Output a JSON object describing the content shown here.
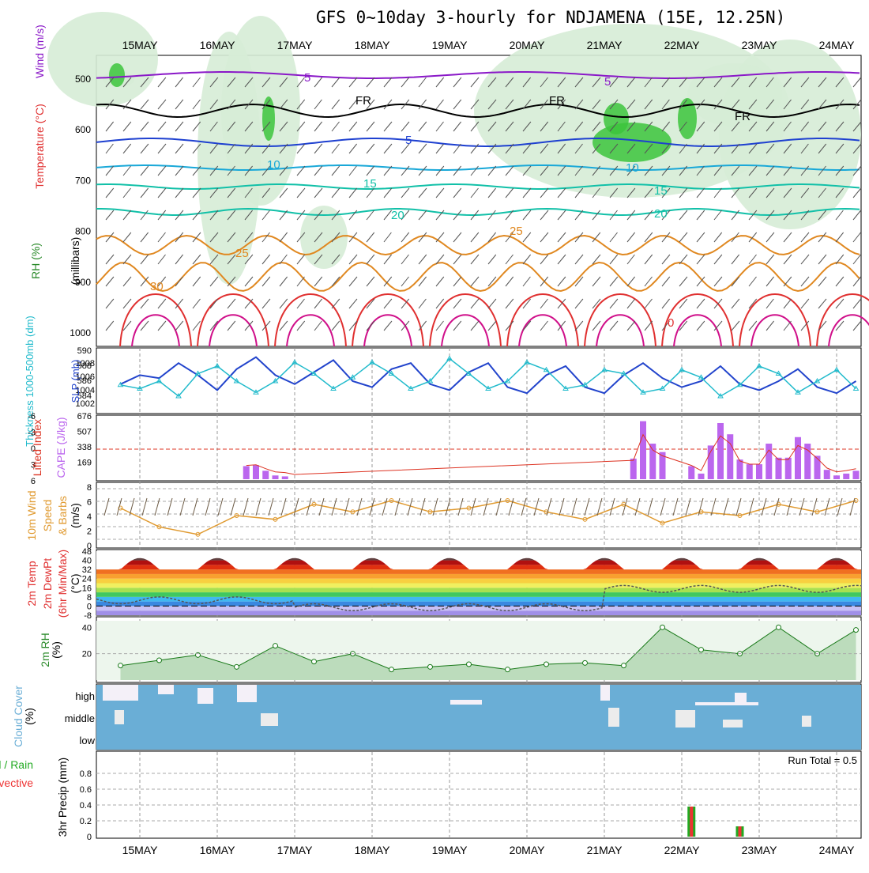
{
  "title": "GFS 0~10day 3-hourly for NDJAMENA (15E, 12.25N)",
  "colors": {
    "rh_green": "#3cc43c",
    "rh_light": "#d6ecd6",
    "temp_blue": "#1e40d0",
    "temp_cyan": "#19a8d8",
    "temp_teal": "#12c0a8",
    "temp_orange": "#e08820",
    "temp_red": "#e03030",
    "temp_magenta": "#d0108a",
    "wind_purple": "#8a18c8",
    "slp_blue": "#2244cc",
    "thick_cyan": "#22bbcc",
    "cape_purple": "#bb66ee",
    "li_red": "#dd3322",
    "wind10_orange": "#e09a30",
    "rh2m_green": "#2a8a2a",
    "cloud_blue": "#6aaed6",
    "precip_green": "#22aa22",
    "precip_red": "#ee3333"
  },
  "date_labels": [
    "15MAY",
    "16MAY",
    "17MAY",
    "18MAY",
    "19MAY",
    "20MAY",
    "21MAY",
    "22MAY",
    "23MAY",
    "24MAY"
  ],
  "panels": {
    "upper": {
      "labels": [
        "Wind (m/s)",
        "Temperature (°C)",
        "RH (%)",
        "(millibars)"
      ],
      "y_ticks": [
        "500",
        "600",
        "700",
        "800",
        "900",
        "1000"
      ],
      "contour_labels": [
        "5",
        "5",
        "FR",
        "FR",
        "FR",
        "5",
        "10",
        "10",
        "15",
        "15",
        "20",
        "20",
        "25",
        "25",
        "30",
        "0"
      ]
    },
    "slp": {
      "left_label": "Thickness 1000-500mb (dm)",
      "right_label": "SLP (mb)",
      "thick_ticks": [
        "590",
        "588",
        "586",
        "584"
      ],
      "slp_ticks": [
        "1008",
        "1006",
        "1004",
        "1002"
      ]
    },
    "cape": {
      "left_label": "Lifted Index",
      "right_label": "CAPE (J/kg)",
      "li_ticks": [
        "-6",
        "-3",
        "0",
        "3",
        "6"
      ],
      "cape_ticks": [
        "676",
        "507",
        "338",
        "169"
      ]
    },
    "wind10": {
      "labels": [
        "10m Wind",
        "Speed",
        "& Barbs",
        "(m/s)"
      ],
      "ticks": [
        "8",
        "6",
        "4",
        "2",
        "0"
      ]
    },
    "temp2m": {
      "labels": [
        "2m Temp",
        "2m DewPt",
        "(6hr Min/Max)",
        "(°C)"
      ],
      "ticks": [
        "48",
        "40",
        "32",
        "24",
        "16",
        "8",
        "0",
        "-8"
      ]
    },
    "rh2m": {
      "labels": [
        "2m RH",
        "(%)"
      ],
      "ticks": [
        "40",
        "20"
      ]
    },
    "cloud": {
      "labels": [
        "Cloud Cover",
        "(%)"
      ],
      "levels": [
        "high",
        "middle",
        "low"
      ]
    },
    "precip": {
      "labels": [
        "3hr Precip (mm)",
        "Total / Rain",
        "Convective"
      ],
      "ticks": [
        "0.8",
        "0.6",
        "0.4",
        "0.2",
        "0"
      ],
      "run_total": "Run Total = 0.5"
    }
  },
  "chart_data": [
    {
      "type": "line",
      "title": "Thickness 1000-500mb (dm) and SLP (mb)",
      "x": [
        "14 18Z",
        "15 00Z",
        "15 06Z",
        "15 12Z",
        "15 18Z",
        "16 00Z",
        "16 06Z",
        "16 12Z",
        "16 18Z",
        "17 00Z",
        "17 06Z",
        "17 12Z",
        "17 18Z",
        "18 00Z",
        "18 06Z",
        "18 12Z",
        "18 18Z",
        "19 00Z",
        "19 06Z",
        "19 12Z",
        "19 18Z",
        "20 00Z",
        "20 06Z",
        "20 12Z",
        "20 18Z",
        "21 00Z",
        "21 06Z",
        "21 12Z",
        "21 18Z",
        "22 00Z",
        "22 06Z",
        "22 12Z",
        "22 18Z",
        "23 00Z",
        "23 06Z",
        "23 12Z",
        "23 18Z",
        "24 00Z",
        "24 06Z"
      ],
      "series": [
        {
          "name": "SLP",
          "axis": "right",
          "values": [
            1004.5,
            1006.0,
            1005.5,
            1008.0,
            1006.0,
            1003.5,
            1007.0,
            1009.0,
            1006.0,
            1004.5,
            1006.5,
            1008.5,
            1005.0,
            1004.0,
            1007.0,
            1008.0,
            1004.5,
            1003.5,
            1006.5,
            1008.0,
            1004.0,
            1003.0,
            1006.0,
            1007.5,
            1004.0,
            1003.0,
            1006.0,
            1008.0,
            1005.5,
            1004.0,
            1005.0,
            1007.5,
            1004.5,
            1003.5,
            1005.0,
            1007.0,
            1004.0,
            1003.0,
            1005.0
          ]
        },
        {
          "name": "Thickness",
          "axis": "left",
          "values": [
            585.5,
            585.0,
            586.0,
            584.0,
            587.0,
            588.0,
            586.0,
            584.5,
            586.0,
            588.5,
            587.0,
            585.0,
            586.5,
            588.5,
            587.0,
            585.0,
            586.0,
            589.0,
            587.0,
            585.0,
            586.0,
            588.5,
            587.5,
            585.0,
            585.5,
            587.5,
            587.0,
            584.5,
            585.0,
            587.5,
            586.5,
            584.0,
            585.5,
            588.0,
            587.0,
            584.5,
            586.0,
            587.5,
            585.0
          ]
        }
      ],
      "ylim_left": [
        582,
        590
      ],
      "ylim_right": [
        1000,
        1010
      ]
    },
    {
      "type": "bar",
      "title": "CAPE (J/kg) and Lifted Index",
      "x": [
        "16 09Z",
        "16 12Z",
        "16 15Z",
        "16 18Z",
        "16 21Z",
        "17 00Z",
        "21 09Z",
        "21 12Z",
        "21 15Z",
        "21 18Z",
        "22 03Z",
        "22 06Z",
        "22 09Z",
        "22 12Z",
        "22 15Z",
        "22 18Z",
        "22 21Z",
        "23 00Z",
        "23 03Z",
        "23 06Z",
        "23 09Z",
        "23 12Z",
        "23 15Z",
        "23 18Z",
        "23 21Z",
        "24 00Z",
        "24 03Z",
        "24 06Z"
      ],
      "series": [
        {
          "name": "CAPE",
          "values": [
            140,
            150,
            90,
            40,
            30,
            0,
            220,
            620,
            380,
            290,
            140,
            60,
            360,
            600,
            480,
            210,
            160,
            160,
            380,
            230,
            230,
            450,
            380,
            250,
            100,
            40,
            60,
            90
          ]
        }
      ],
      "ylim": [
        0,
        676
      ]
    },
    {
      "type": "line",
      "title": "10m Wind Speed (m/s)",
      "x": [
        "14 18Z",
        "15 06Z",
        "15 18Z",
        "16 06Z",
        "16 18Z",
        "17 06Z",
        "17 18Z",
        "18 06Z",
        "18 18Z",
        "19 06Z",
        "19 18Z",
        "20 06Z",
        "20 18Z",
        "21 06Z",
        "21 18Z",
        "22 06Z",
        "22 18Z",
        "23 06Z",
        "23 18Z",
        "24 06Z"
      ],
      "series": [
        {
          "name": "Speed",
          "values": [
            5.0,
            2.5,
            1.5,
            4.0,
            3.5,
            5.5,
            4.5,
            6.0,
            4.5,
            5.0,
            6.0,
            4.5,
            3.5,
            5.5,
            3.0,
            4.5,
            4.0,
            5.5,
            4.5,
            6.0
          ]
        }
      ],
      "ylim": [
        0,
        8
      ]
    },
    {
      "type": "area",
      "title": "2m Temp / 2m DewPt (6hr Min/Max) (°C)",
      "x": [
        "15",
        "16",
        "17",
        "18",
        "19",
        "20",
        "21",
        "22",
        "23",
        "24"
      ],
      "series": [
        {
          "name": "2m Temp",
          "values": [
            42,
            41,
            42,
            43,
            43,
            43,
            41,
            40,
            40,
            38
          ]
        },
        {
          "name": "2m DewPt",
          "values": [
            6,
            5,
            13,
            -2,
            -1,
            -3,
            3,
            14,
            16,
            17
          ]
        }
      ],
      "ylim": [
        -8,
        48
      ]
    },
    {
      "type": "line",
      "title": "2m RH (%)",
      "x": [
        "14 18Z",
        "15 06Z",
        "15 18Z",
        "16 06Z",
        "16 18Z",
        "17 06Z",
        "17 18Z",
        "18 06Z",
        "18 18Z",
        "19 06Z",
        "19 18Z",
        "20 06Z",
        "20 18Z",
        "21 06Z",
        "21 18Z",
        "22 06Z",
        "22 18Z",
        "23 06Z",
        "23 18Z",
        "24 06Z"
      ],
      "series": [
        {
          "name": "2m RH",
          "values": [
            11,
            15,
            19,
            10,
            26,
            14,
            20,
            8,
            10,
            12,
            8,
            12,
            13,
            11,
            40,
            23,
            20,
            40,
            20,
            38
          ]
        }
      ],
      "ylim": [
        0,
        45
      ]
    },
    {
      "type": "bar",
      "title": "3hr Precip (mm)",
      "x": [
        "22 03Z",
        "22 18Z"
      ],
      "series": [
        {
          "name": "Total / Rain",
          "values": [
            0.38,
            0.13
          ]
        },
        {
          "name": "Convective",
          "values": [
            0.38,
            0.13
          ]
        }
      ],
      "ylim": [
        0,
        1.0
      ]
    }
  ]
}
